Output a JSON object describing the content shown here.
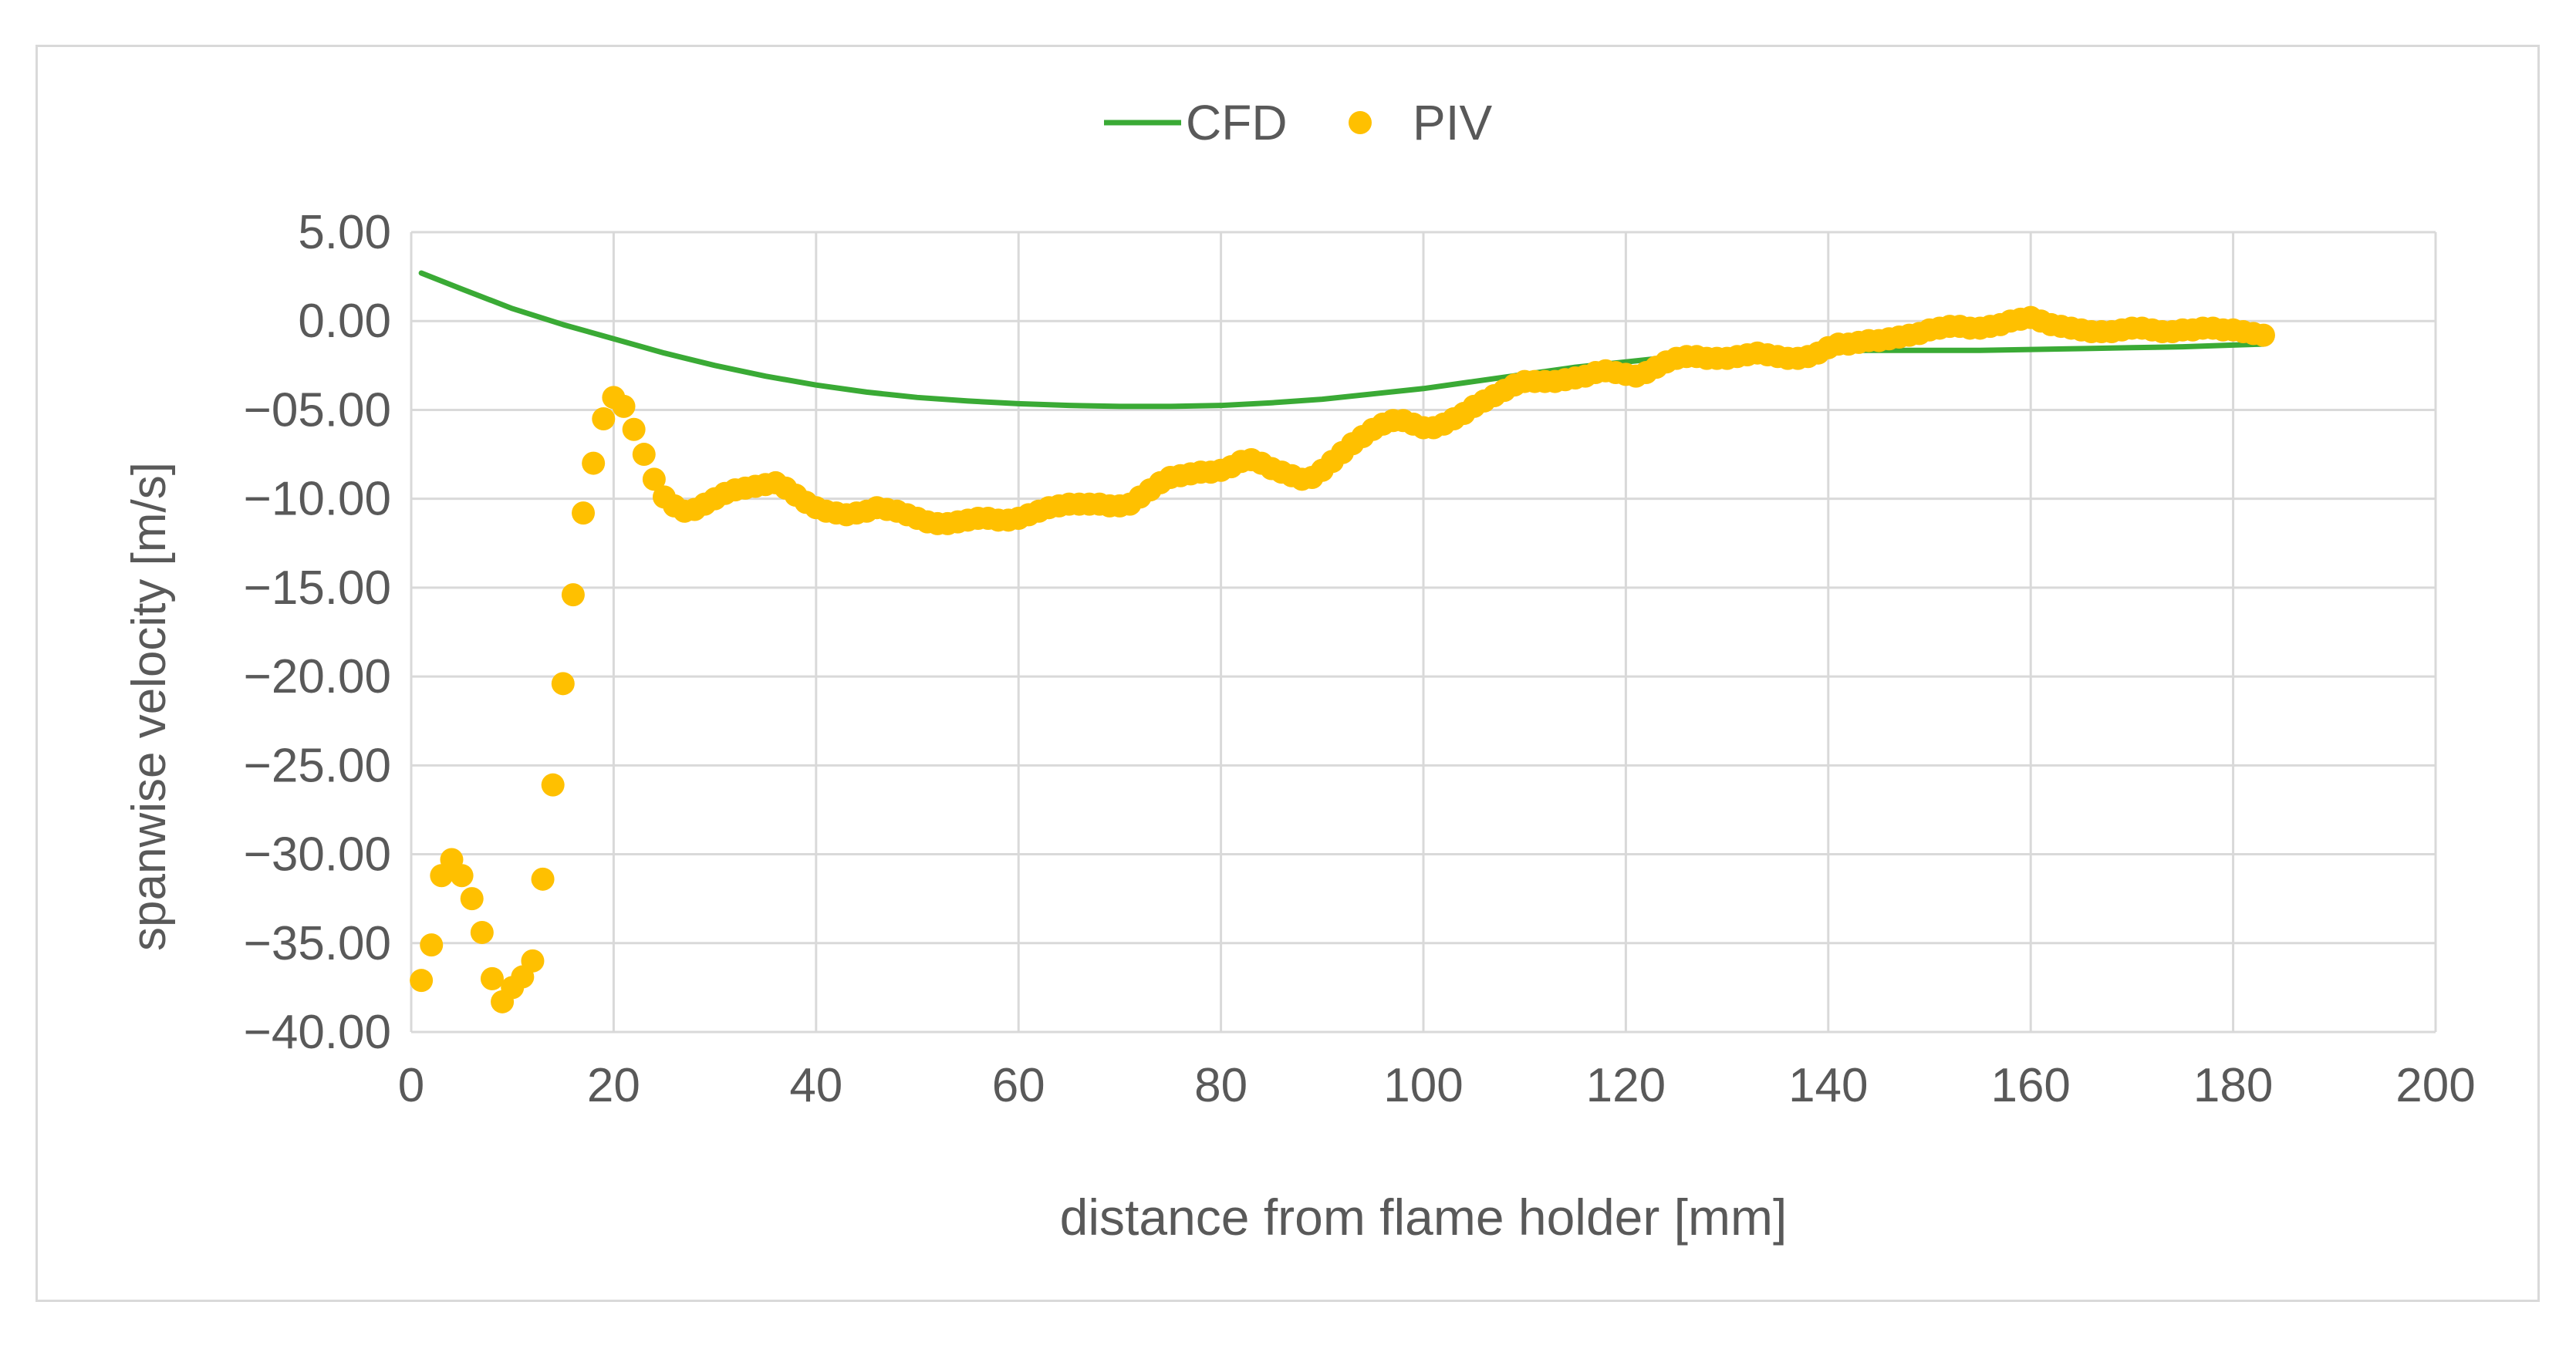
{
  "chart_data": {
    "type": "scatter",
    "xlabel": "distance from flame holder [mm]",
    "ylabel": "spanwise velocity [m/s]",
    "xlim": [
      0,
      200
    ],
    "ylim": [
      -40,
      5
    ],
    "x_ticks": [
      0,
      20,
      40,
      60,
      80,
      100,
      120,
      140,
      160,
      180,
      200
    ],
    "x_tick_labels": [
      "0",
      "20",
      "40",
      "60",
      "80",
      "100",
      "120",
      "140",
      "160",
      "180",
      "200"
    ],
    "y_ticks": [
      5,
      0,
      -5,
      -10,
      -15,
      -20,
      -25,
      -30,
      -35,
      -40
    ],
    "y_tick_labels": [
      "5.00",
      "0.00",
      "−05.00",
      "−10.00",
      "−15.00",
      "−20.00",
      "−25.00",
      "−30.00",
      "−35.00",
      "−40.00"
    ],
    "grid": true,
    "legend_position": "top-center",
    "series": [
      {
        "name": "CFD",
        "style": "line",
        "color": "#3aaa35",
        "x": [
          1,
          5,
          10,
          15,
          20,
          25,
          30,
          35,
          40,
          45,
          50,
          55,
          60,
          65,
          70,
          75,
          80,
          85,
          90,
          95,
          100,
          105,
          110,
          115,
          120,
          125,
          130,
          135,
          140,
          145,
          150,
          155,
          160,
          165,
          170,
          175,
          180,
          183
        ],
        "y": [
          2.7,
          1.8,
          0.7,
          -0.2,
          -1.0,
          -1.8,
          -2.5,
          -3.1,
          -3.6,
          -4.0,
          -4.3,
          -4.5,
          -4.65,
          -4.75,
          -4.8,
          -4.8,
          -4.75,
          -4.6,
          -4.4,
          -4.1,
          -3.8,
          -3.4,
          -3.0,
          -2.6,
          -2.3,
          -2.0,
          -1.8,
          -1.7,
          -1.65,
          -1.65,
          -1.65,
          -1.65,
          -1.6,
          -1.55,
          -1.5,
          -1.45,
          -1.35,
          -1.3
        ]
      },
      {
        "name": "PIV",
        "style": "markers",
        "color": "#ffc000",
        "x": [
          1,
          2,
          3,
          4,
          5,
          6,
          7,
          8,
          9,
          10,
          11,
          12,
          13,
          14,
          15,
          16,
          17,
          18,
          19,
          20,
          21,
          22,
          23,
          24,
          25,
          26,
          27,
          28,
          29,
          30,
          31,
          32,
          33,
          34,
          35,
          36,
          37,
          38,
          39,
          40,
          41,
          42,
          43,
          44,
          45,
          46,
          47,
          48,
          49,
          50,
          51,
          52,
          53,
          54,
          55,
          56,
          57,
          58,
          59,
          60,
          61,
          62,
          63,
          64,
          65,
          66,
          67,
          68,
          69,
          70,
          71,
          72,
          73,
          74,
          75,
          76,
          77,
          78,
          79,
          80,
          81,
          82,
          83,
          84,
          85,
          86,
          87,
          88,
          89,
          90,
          91,
          92,
          93,
          94,
          95,
          96,
          97,
          98,
          99,
          100,
          101,
          102,
          103,
          104,
          105,
          106,
          107,
          108,
          109,
          110,
          111,
          112,
          113,
          114,
          115,
          116,
          117,
          118,
          119,
          120,
          121,
          122,
          123,
          124,
          125,
          126,
          127,
          128,
          129,
          130,
          131,
          132,
          133,
          134,
          135,
          136,
          137,
          138,
          139,
          140,
          141,
          142,
          143,
          144,
          145,
          146,
          147,
          148,
          149,
          150,
          151,
          152,
          153,
          154,
          155,
          156,
          157,
          158,
          159,
          160,
          161,
          162,
          163,
          164,
          165,
          166,
          167,
          168,
          169,
          170,
          171,
          172,
          173,
          174,
          175,
          176,
          177,
          178,
          179,
          180,
          181,
          182,
          183
        ],
        "y": [
          -37.1,
          -35.1,
          -31.2,
          -30.3,
          -31.2,
          -32.5,
          -34.4,
          -37.0,
          -38.3,
          -37.5,
          -36.9,
          -36.0,
          -31.4,
          -26.1,
          -20.4,
          -15.4,
          -10.8,
          -8.0,
          -5.5,
          -4.3,
          -4.8,
          -6.1,
          -7.5,
          -8.9,
          -9.9,
          -10.4,
          -10.7,
          -10.6,
          -10.3,
          -10.0,
          -9.7,
          -9.5,
          -9.4,
          -9.3,
          -9.2,
          -9.1,
          -9.4,
          -9.8,
          -10.2,
          -10.5,
          -10.7,
          -10.8,
          -10.9,
          -10.8,
          -10.7,
          -10.5,
          -10.6,
          -10.7,
          -10.9,
          -11.1,
          -11.3,
          -11.4,
          -11.4,
          -11.3,
          -11.2,
          -11.1,
          -11.1,
          -11.2,
          -11.2,
          -11.1,
          -10.9,
          -10.7,
          -10.5,
          -10.4,
          -10.3,
          -10.3,
          -10.3,
          -10.3,
          -10.4,
          -10.4,
          -10.3,
          -9.9,
          -9.5,
          -9.1,
          -8.8,
          -8.7,
          -8.6,
          -8.5,
          -8.5,
          -8.4,
          -8.2,
          -7.9,
          -7.8,
          -8.0,
          -8.3,
          -8.5,
          -8.7,
          -8.9,
          -8.8,
          -8.4,
          -7.9,
          -7.4,
          -6.9,
          -6.5,
          -6.1,
          -5.8,
          -5.6,
          -5.6,
          -5.8,
          -6.0,
          -6.0,
          -5.8,
          -5.5,
          -5.2,
          -4.8,
          -4.5,
          -4.2,
          -3.9,
          -3.6,
          -3.4,
          -3.4,
          -3.4,
          -3.4,
          -3.3,
          -3.2,
          -3.1,
          -2.9,
          -2.8,
          -2.9,
          -3.0,
          -3.1,
          -2.9,
          -2.6,
          -2.3,
          -2.1,
          -2.0,
          -2.0,
          -2.1,
          -2.1,
          -2.1,
          -2.0,
          -1.9,
          -1.8,
          -1.9,
          -2.0,
          -2.1,
          -2.1,
          -2.0,
          -1.8,
          -1.5,
          -1.3,
          -1.3,
          -1.2,
          -1.1,
          -1.1,
          -1.0,
          -0.9,
          -0.8,
          -0.7,
          -0.5,
          -0.4,
          -0.3,
          -0.3,
          -0.4,
          -0.4,
          -0.3,
          -0.2,
          0.0,
          0.1,
          0.2,
          0.0,
          -0.2,
          -0.3,
          -0.4,
          -0.5,
          -0.6,
          -0.6,
          -0.6,
          -0.5,
          -0.4,
          -0.4,
          -0.5,
          -0.6,
          -0.6,
          -0.5,
          -0.5,
          -0.4,
          -0.4,
          -0.5,
          -0.5,
          -0.6,
          -0.7,
          -0.8
        ]
      }
    ]
  }
}
